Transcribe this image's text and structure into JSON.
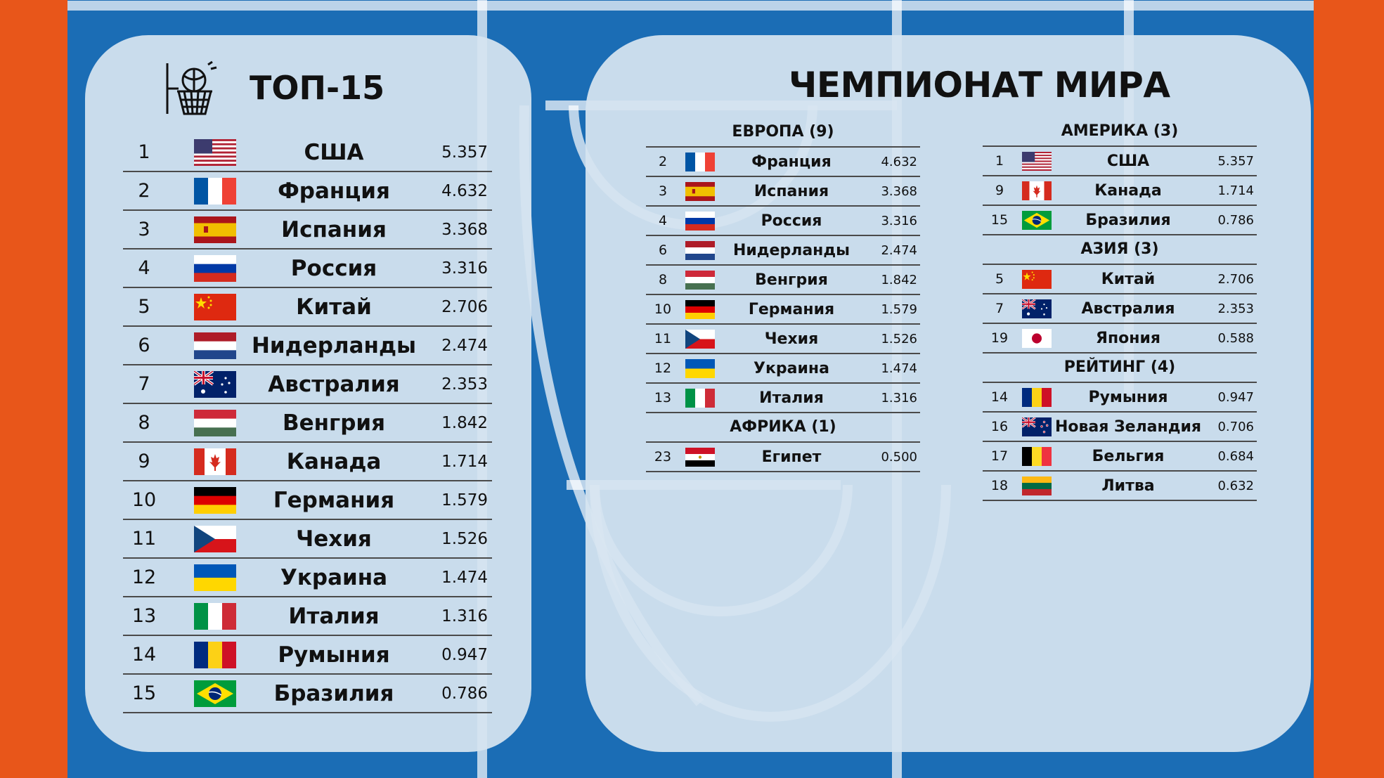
{
  "top15": {
    "title": "ТОП-15",
    "rows": [
      {
        "rank": "1",
        "country": "США",
        "score": "5.357",
        "flag": "us"
      },
      {
        "rank": "2",
        "country": "Франция",
        "score": "4.632",
        "flag": "fr"
      },
      {
        "rank": "3",
        "country": "Испания",
        "score": "3.368",
        "flag": "es"
      },
      {
        "rank": "4",
        "country": "Россия",
        "score": "3.316",
        "flag": "ru"
      },
      {
        "rank": "5",
        "country": "Китай",
        "score": "2.706",
        "flag": "cn"
      },
      {
        "rank": "6",
        "country": "Нидерланды",
        "score": "2.474",
        "flag": "nl"
      },
      {
        "rank": "7",
        "country": "Австралия",
        "score": "2.353",
        "flag": "au"
      },
      {
        "rank": "8",
        "country": "Венгрия",
        "score": "1.842",
        "flag": "hu"
      },
      {
        "rank": "9",
        "country": "Канада",
        "score": "1.714",
        "flag": "ca"
      },
      {
        "rank": "10",
        "country": "Германия",
        "score": "1.579",
        "flag": "de"
      },
      {
        "rank": "11",
        "country": "Чехия",
        "score": "1.526",
        "flag": "cz"
      },
      {
        "rank": "12",
        "country": "Украина",
        "score": "1.474",
        "flag": "ua"
      },
      {
        "rank": "13",
        "country": "Италия",
        "score": "1.316",
        "flag": "it"
      },
      {
        "rank": "14",
        "country": "Румыния",
        "score": "0.947",
        "flag": "ro"
      },
      {
        "rank": "15",
        "country": "Бразилия",
        "score": "0.786",
        "flag": "br"
      }
    ]
  },
  "worlds": {
    "title": "ЧЕМПИОНАТ МИРА",
    "columns": [
      [
        {
          "heading": "ЕВРОПА (9)",
          "rows": [
            {
              "rank": "2",
              "country": "Франция",
              "score": "4.632",
              "flag": "fr"
            },
            {
              "rank": "3",
              "country": "Испания",
              "score": "3.368",
              "flag": "es"
            },
            {
              "rank": "4",
              "country": "Россия",
              "score": "3.316",
              "flag": "ru"
            },
            {
              "rank": "6",
              "country": "Нидерланды",
              "score": "2.474",
              "flag": "nl"
            },
            {
              "rank": "8",
              "country": "Венгрия",
              "score": "1.842",
              "flag": "hu"
            },
            {
              "rank": "10",
              "country": "Германия",
              "score": "1.579",
              "flag": "de"
            },
            {
              "rank": "11",
              "country": "Чехия",
              "score": "1.526",
              "flag": "cz"
            },
            {
              "rank": "12",
              "country": "Украина",
              "score": "1.474",
              "flag": "ua"
            },
            {
              "rank": "13",
              "country": "Италия",
              "score": "1.316",
              "flag": "it"
            }
          ]
        },
        {
          "heading": "АФРИКА (1)",
          "rows": [
            {
              "rank": "23",
              "country": "Египет",
              "score": "0.500",
              "flag": "eg"
            }
          ]
        }
      ],
      [
        {
          "heading": "АМЕРИКА (3)",
          "rows": [
            {
              "rank": "1",
              "country": "США",
              "score": "5.357",
              "flag": "us"
            },
            {
              "rank": "9",
              "country": "Канада",
              "score": "1.714",
              "flag": "ca"
            },
            {
              "rank": "15",
              "country": "Бразилия",
              "score": "0.786",
              "flag": "br"
            }
          ]
        },
        {
          "heading": "АЗИЯ (3)",
          "rows": [
            {
              "rank": "5",
              "country": "Китай",
              "score": "2.706",
              "flag": "cn"
            },
            {
              "rank": "7",
              "country": "Австралия",
              "score": "2.353",
              "flag": "au"
            },
            {
              "rank": "19",
              "country": "Япония",
              "score": "0.588",
              "flag": "jp"
            }
          ]
        },
        {
          "heading": "РЕЙТИНГ (4)",
          "rows": [
            {
              "rank": "14",
              "country": "Румыния",
              "score": "0.947",
              "flag": "ro"
            },
            {
              "rank": "16",
              "country": "Новая Зеландия",
              "score": "0.706",
              "flag": "nz"
            },
            {
              "rank": "17",
              "country": "Бельгия",
              "score": "0.684",
              "flag": "be"
            },
            {
              "rank": "18",
              "country": "Литва",
              "score": "0.632",
              "flag": "lt"
            }
          ]
        }
      ]
    ]
  },
  "colors": {
    "background_orange": "#e8561a",
    "court_blue": "#1b6db5",
    "panel": "#d6e4f0"
  }
}
